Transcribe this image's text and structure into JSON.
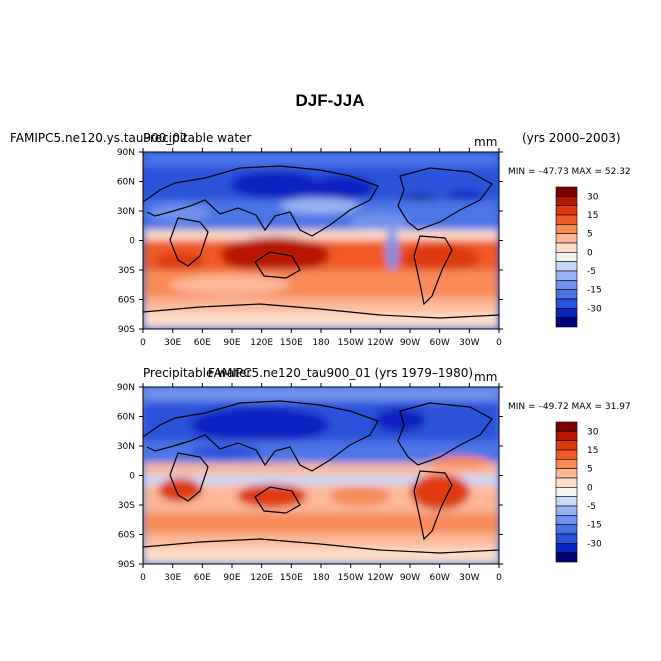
{
  "title": "DJF-JJA",
  "colorbar_labels": [
    "30",
    "15",
    "5",
    "0",
    "-5",
    "-15",
    "-30"
  ],
  "colorbar_colors": [
    "#7a0000",
    "#b81400",
    "#dd3a10",
    "#f05a28",
    "#f88a58",
    "#fcb898",
    "#fddcc8",
    "#f2f2f2",
    "#c8d8f8",
    "#98b4f0",
    "#6f93ec",
    "#4a74e6",
    "#2a52dc",
    "#0a24c0",
    "#00007a"
  ],
  "lon_labels": [
    "0",
    "30E",
    "60E",
    "90E",
    "120E",
    "150E",
    "180",
    "150W",
    "120W",
    "90W",
    "60W",
    "30W",
    "0"
  ],
  "lat_labels": [
    "90N",
    "60N",
    "30N",
    "0",
    "30S",
    "60S",
    "90S"
  ],
  "panels": [
    {
      "left_title": "FAMIPC5.ne120.ys.tau900_02",
      "center_title": "Precipitable water",
      "units": "mm",
      "right_title": "(yrs 2000–2003)",
      "stats": "MIN = –47.73 MAX =  52.32"
    },
    {
      "left_title": "Precipitable water",
      "center_title": "FAMIPC5.ne120_tau900_01 (yrs 1979–1980)",
      "units": "mm",
      "right_title": "",
      "stats": "MIN = –49.72 MAX =  31.97"
    }
  ]
}
